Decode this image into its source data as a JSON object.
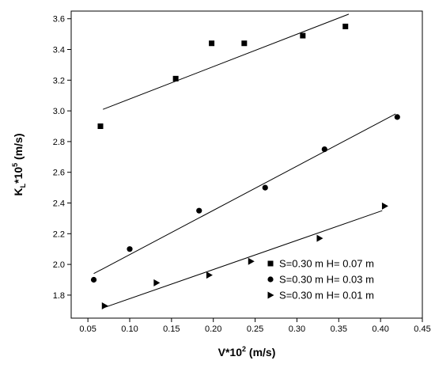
{
  "chart_data": {
    "type": "scatter",
    "xlabel": "V*10",
    "xlabel_sup": "2",
    "xlabel_unit": " (m/s)",
    "ylabel": "K",
    "ylabel_sub": "L",
    "ylabel_mid": "*10",
    "ylabel_sup": "5",
    "ylabel_unit": " (m/s)",
    "xlim": [
      0.03,
      0.45
    ],
    "ylim": [
      1.65,
      3.65
    ],
    "xticks": [
      0.05,
      0.1,
      0.15,
      0.2,
      0.25,
      0.3,
      0.35,
      0.4,
      0.45
    ],
    "xtick_labels": [
      "0.05",
      "0.10",
      "0.15",
      "0.20",
      "0.25",
      "0.30",
      "0.35",
      "0.40",
      "0.45"
    ],
    "yticks": [
      1.8,
      2.0,
      2.2,
      2.4,
      2.6,
      2.8,
      3.0,
      3.2,
      3.4,
      3.6
    ],
    "ytick_labels": [
      "1.8",
      "2.0",
      "2.2",
      "2.4",
      "2.6",
      "2.8",
      "3.0",
      "3.2",
      "3.4",
      "3.6"
    ],
    "grid": false,
    "legend_position": "bottom-right",
    "series": [
      {
        "name": "S=0.30 m  H= 0.07 m",
        "marker": "square",
        "x": [
          0.065,
          0.155,
          0.198,
          0.237,
          0.307,
          0.358
        ],
        "y": [
          2.9,
          3.21,
          3.44,
          3.44,
          3.49,
          3.55
        ],
        "fit": [
          [
            0.068,
            3.01
          ],
          [
            0.362,
            3.63
          ]
        ]
      },
      {
        "name": "S=0.30 m  H= 0.03 m",
        "marker": "circle",
        "x": [
          0.057,
          0.1,
          0.183,
          0.262,
          0.333,
          0.42
        ],
        "y": [
          1.9,
          2.1,
          2.35,
          2.5,
          2.75,
          2.96
        ],
        "fit": [
          [
            0.057,
            1.94
          ],
          [
            0.418,
            2.98
          ]
        ]
      },
      {
        "name": "S=0.30 m   H= 0.01 m",
        "marker": "triangle-right",
        "x": [
          0.07,
          0.132,
          0.195,
          0.245,
          0.327,
          0.405
        ],
        "y": [
          1.73,
          1.88,
          1.93,
          2.02,
          2.17,
          2.38
        ],
        "fit": [
          [
            0.07,
            1.72
          ],
          [
            0.402,
            2.35
          ]
        ]
      }
    ]
  }
}
